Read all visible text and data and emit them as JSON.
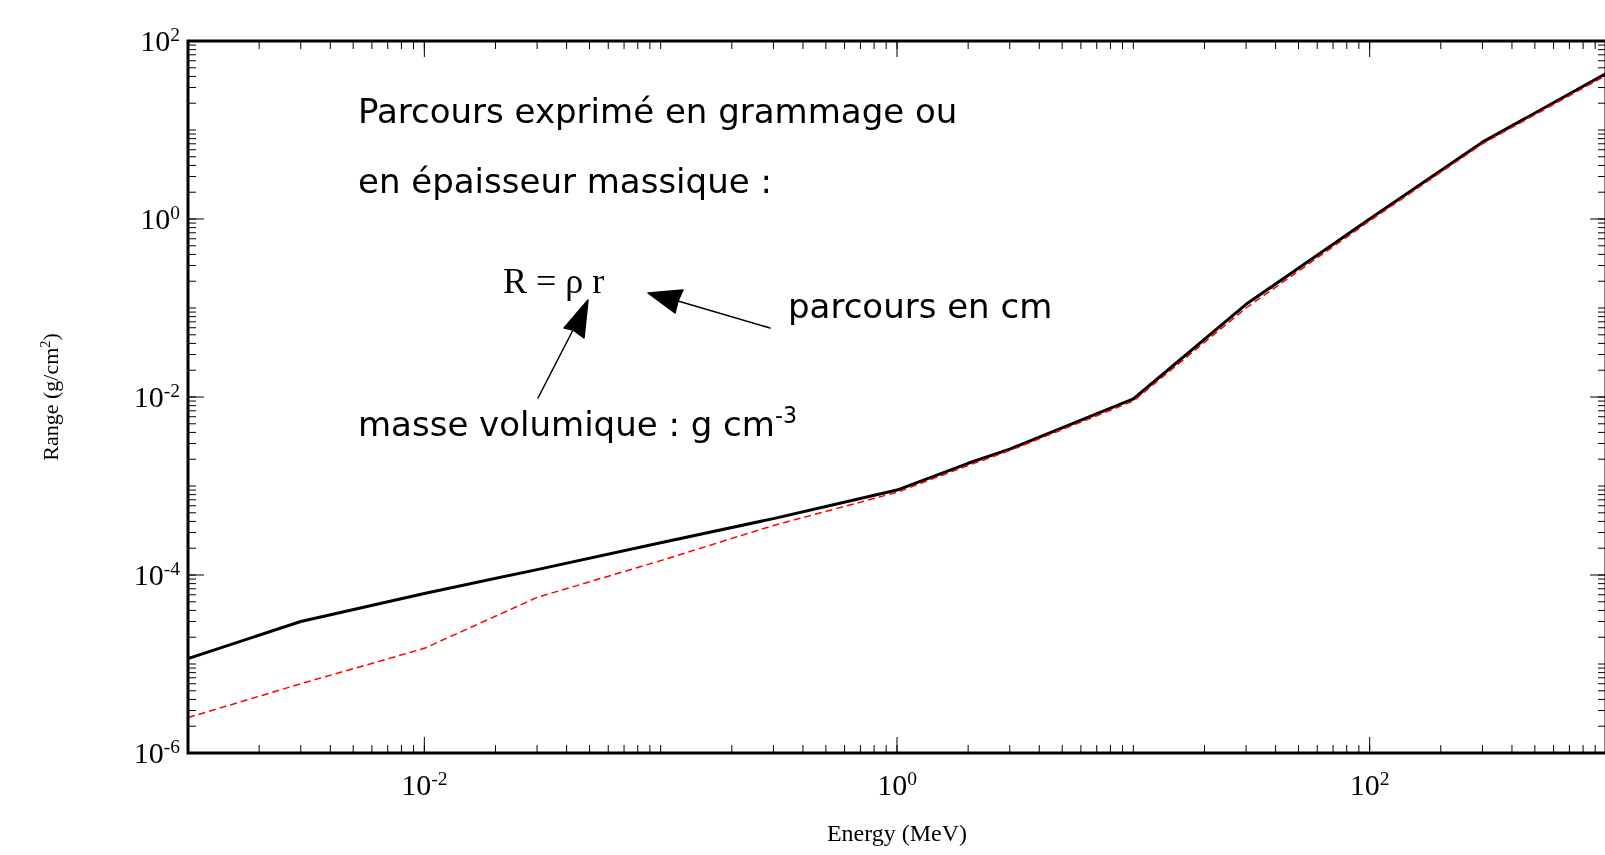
{
  "chart_data": {
    "type": "line",
    "xlabel": "Energy (MeV)",
    "ylabel": "Range (g/cm$^{2}$)",
    "log": "xy",
    "grid": false,
    "xlim": [
      0.001,
      1000
    ],
    "ylim": [
      1e-06,
      100
    ],
    "xticks": [
      {
        "value": 0.01,
        "label": "10$^{-2}$"
      },
      {
        "value": 1,
        "label": "10$^{0}$"
      },
      {
        "value": 100,
        "label": "10$^{2}$"
      }
    ],
    "yticks": [
      {
        "value": 1e-06,
        "label": "10$^{-6}$"
      },
      {
        "value": 0.0001,
        "label": "10$^{-4}$"
      },
      {
        "value": 0.01,
        "label": "10$^{-2}$"
      },
      {
        "value": 1,
        "label": "10$^{0}$"
      },
      {
        "value": 100,
        "label": "10$^{2}$"
      }
    ],
    "series": [
      {
        "color": "#000000",
        "line_style": "solid",
        "x": [
          0.001,
          0.003,
          0.01,
          0.03,
          0.1,
          0.3,
          1,
          2,
          3,
          10,
          30,
          100,
          300,
          1000
        ],
        "values": [
          1.15e-05,
          3e-05,
          6.2e-05,
          0.000115,
          0.00023,
          0.00043,
          0.0009,
          0.0018,
          0.0026,
          0.0095,
          0.11,
          1.0,
          7.3,
          43
        ]
      },
      {
        "color": "#ff0000",
        "line_style": "dashed",
        "x": [
          0.001,
          0.003,
          0.01,
          0.03,
          0.1,
          0.3,
          1,
          2,
          3,
          10,
          30,
          100,
          300,
          1000
        ],
        "values": [
          2.5e-06,
          6e-06,
          1.5e-05,
          5.6e-05,
          0.000145,
          0.00036,
          0.00085,
          0.0017,
          0.0025,
          0.009,
          0.1,
          0.95,
          7,
          41
        ]
      }
    ],
    "annotations": [
      "Parcours exprimé en grammage ou",
      "en épaisseur massique :",
      "R = ρ r",
      "parcours en cm",
      "masse volumique : g cm$^{-3}$"
    ]
  }
}
